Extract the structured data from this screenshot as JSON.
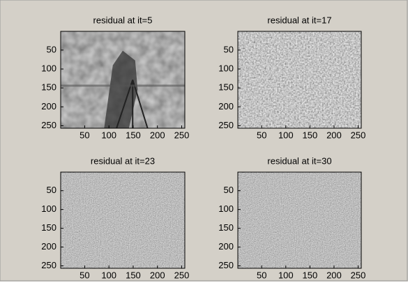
{
  "chart_data": [
    {
      "type": "image",
      "title": "residual at it=5",
      "xlim": [
        0.5,
        256.5
      ],
      "ylim": [
        0.5,
        256.5
      ],
      "xticks": [
        50,
        100,
        150,
        200,
        250
      ],
      "yticks": [
        50,
        100,
        150,
        200,
        250
      ]
    },
    {
      "type": "image",
      "title": "residual at it=17",
      "xlim": [
        0.5,
        256.5
      ],
      "ylim": [
        0.5,
        256.5
      ],
      "xticks": [
        50,
        100,
        150,
        200,
        250
      ],
      "yticks": [
        50,
        100,
        150,
        200,
        250
      ]
    },
    {
      "type": "image",
      "title": "residual at it=23",
      "xlim": [
        0.5,
        256.5
      ],
      "ylim": [
        0.5,
        256.5
      ],
      "xticks": [
        50,
        100,
        150,
        200,
        250
      ],
      "yticks": [
        50,
        100,
        150,
        200,
        250
      ]
    },
    {
      "type": "image",
      "title": "residual at it=30",
      "xlim": [
        0.5,
        256.5
      ],
      "ylim": [
        0.5,
        256.5
      ],
      "xticks": [
        50,
        100,
        150,
        200,
        250
      ],
      "yticks": [
        50,
        100,
        150,
        200,
        250
      ]
    }
  ]
}
